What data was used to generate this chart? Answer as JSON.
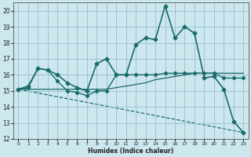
{
  "title": "",
  "xlabel": "Humidex (Indice chaleur)",
  "bg_color": "#cce8ee",
  "grid_color": "#99bbcc",
  "line_color": "#1a6b6b",
  "xlim": [
    -0.5,
    23.5
  ],
  "ylim": [
    12,
    20.5
  ],
  "yticks": [
    12,
    13,
    14,
    15,
    16,
    17,
    18,
    19,
    20
  ],
  "xticks": [
    0,
    1,
    2,
    3,
    4,
    5,
    6,
    7,
    8,
    9,
    10,
    11,
    12,
    13,
    14,
    15,
    16,
    17,
    18,
    19,
    20,
    21,
    22,
    23
  ],
  "line1_x": [
    0,
    1,
    2,
    3,
    4,
    5,
    6,
    7,
    8,
    9,
    10,
    11,
    12,
    13,
    14,
    15,
    16,
    17,
    18,
    19,
    20,
    21,
    22,
    23
  ],
  "line1_y": [
    15.1,
    15.3,
    16.4,
    16.3,
    16.0,
    15.5,
    15.2,
    15.0,
    16.7,
    17.0,
    16.0,
    16.0,
    17.9,
    18.3,
    18.2,
    20.3,
    18.3,
    19.0,
    18.6,
    15.8,
    15.9,
    15.1,
    13.1,
    12.4
  ],
  "line2_x": [
    0,
    1,
    2,
    3,
    4,
    5,
    6,
    7,
    8,
    9,
    10,
    11,
    12,
    13,
    14,
    15,
    16,
    17,
    18,
    19,
    20,
    21,
    22,
    23
  ],
  "line2_y": [
    15.1,
    15.2,
    16.4,
    16.3,
    15.6,
    15.0,
    14.9,
    14.7,
    15.0,
    15.0,
    16.0,
    16.0,
    16.0,
    16.0,
    16.0,
    16.1,
    16.1,
    16.1,
    16.1,
    16.1,
    16.1,
    15.8,
    15.8,
    15.8
  ],
  "line3_x": [
    0,
    1,
    2,
    3,
    4,
    5,
    6,
    7,
    8,
    9,
    10,
    11,
    12,
    13,
    14,
    15,
    16,
    17,
    18,
    19,
    20,
    21,
    22,
    23
  ],
  "line3_y": [
    15.1,
    15.1,
    15.1,
    15.1,
    15.1,
    15.1,
    15.1,
    15.1,
    15.1,
    15.1,
    15.2,
    15.3,
    15.4,
    15.5,
    15.7,
    15.8,
    15.9,
    16.0,
    16.1,
    16.1,
    16.1,
    16.1,
    16.1,
    16.1
  ],
  "line4_x": [
    0,
    23
  ],
  "line4_y": [
    15.1,
    12.4
  ]
}
